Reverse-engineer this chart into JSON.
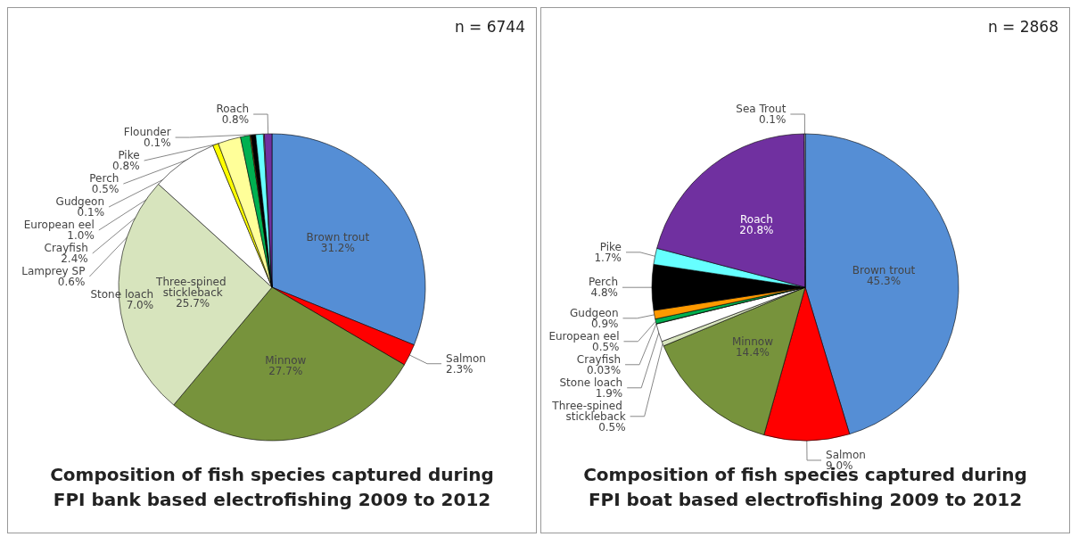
{
  "chart_data": [
    {
      "type": "pie",
      "title": "Composition of fish species captured during\nFPI bank based electrofishing 2009 to 2012",
      "annotations": [
        "n = 6744"
      ],
      "categories": [
        "Brown trout",
        "Salmon",
        "Minnow",
        "Three-spined stickleback",
        "Stone loach",
        "Lamprey SP",
        "Crayfish",
        "European eel",
        "Gudgeon",
        "Perch",
        "Pike",
        "Flounder",
        "Roach"
      ],
      "values": [
        31.2,
        2.3,
        27.7,
        25.7,
        7.0,
        0.6,
        2.4,
        1.0,
        0.1,
        0.5,
        0.8,
        0.1,
        0.8
      ],
      "value_labels": [
        "31.2%",
        "2.3%",
        "27.7%",
        "25.7%",
        "7.0%",
        "0.6%",
        "2.4%",
        "1.0%",
        "0.1%",
        "0.5%",
        "0.8%",
        "0.1%",
        "0.8%"
      ],
      "colors": [
        "#558ed5",
        "#ff0000",
        "#77933c",
        "#d7e4bd",
        "#ffffff",
        "#ffff00",
        "#ffff99",
        "#00b050",
        "#ff9900",
        "#000000",
        "#66ffff",
        "#d9d9d9",
        "#7030a0"
      ],
      "legend": false
    },
    {
      "type": "pie",
      "title": "Composition of fish species captured during\nFPI boat based electrofishing 2009 to 2012",
      "annotations": [
        "n = 2868"
      ],
      "categories": [
        "Brown trout",
        "Salmon",
        "Minnow",
        "Three-spined stickleback",
        "Stone loach",
        "Crayfish",
        "European eel",
        "Gudgeon",
        "Perch",
        "Pike",
        "Roach",
        "Sea Trout"
      ],
      "values": [
        45.3,
        9.0,
        14.4,
        0.5,
        1.9,
        0.03,
        0.5,
        0.9,
        4.8,
        1.7,
        20.8,
        0.1
      ],
      "value_labels": [
        "45.3%",
        "9.0%",
        "14.4%",
        "0.5%",
        "1.9%",
        "0.03%",
        "0.5%",
        "0.9%",
        "4.8%",
        "1.7%",
        "20.8%",
        "0.1%"
      ],
      "colors": [
        "#558ed5",
        "#ff0000",
        "#77933c",
        "#d7e4bd",
        "#ffffff",
        "#ffff99",
        "#00b050",
        "#ff9900",
        "#000000",
        "#66ffff",
        "#7030a0",
        "#d9d9d9"
      ],
      "legend": false
    }
  ]
}
